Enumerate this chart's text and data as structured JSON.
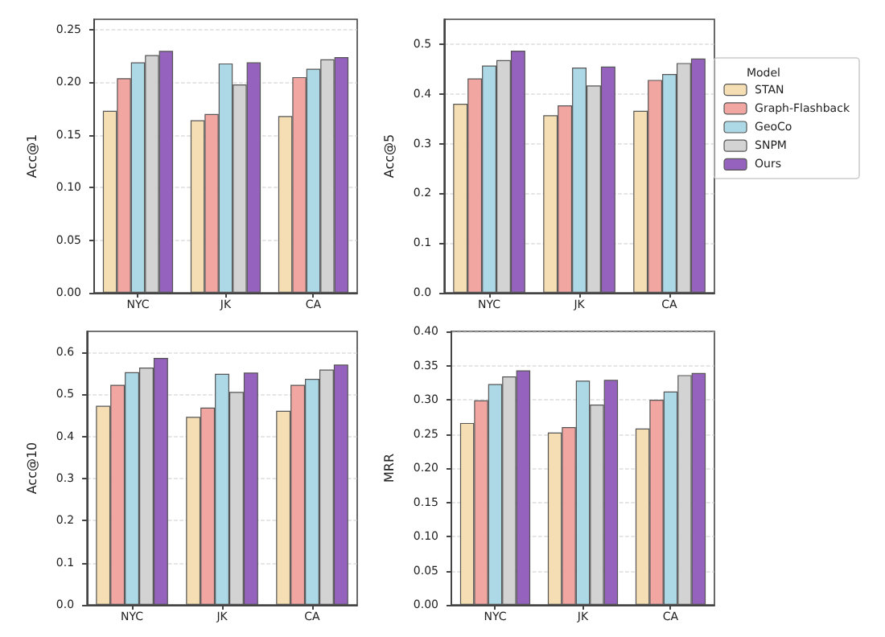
{
  "chart_data": [
    {
      "type": "bar",
      "categories": [
        "NYC",
        "JK",
        "CA"
      ],
      "ylabel": "Acc@1",
      "ylim": [
        0,
        0.26
      ],
      "yticks": [
        {
          "value": 0,
          "label": "0.00"
        },
        0.05,
        {
          "value": 0.1,
          "label": "0.10"
        },
        0.15,
        {
          "value": 0.2,
          "label": "0.20"
        },
        0.25
      ],
      "grid": "y",
      "legend": false,
      "series": [
        {
          "color": "#f5deb3",
          "values": [
            0.173,
            0.164,
            0.168
          ]
        },
        {
          "color": "#f2a6a2",
          "values": [
            0.204,
            0.17,
            0.205
          ]
        },
        {
          "color": "#add8e6",
          "values": [
            0.219,
            0.218,
            0.213
          ]
        },
        {
          "color": "#d3d3d3",
          "values": [
            0.226,
            0.198,
            0.222
          ]
        },
        {
          "color": "#9562bd",
          "values": [
            0.23,
            0.219,
            0.224
          ]
        }
      ]
    },
    {
      "type": "bar",
      "categories": [
        "NYC",
        "JK",
        "CA"
      ],
      "ylabel": "Acc@5",
      "ylim": [
        0,
        0.55
      ],
      "yticks": [
        {
          "value": 0,
          "label": "0.0"
        },
        0.1,
        0.2,
        0.3,
        0.4,
        0.5
      ],
      "grid": "y",
      "legend": "right",
      "legend_title": "Model",
      "series": [
        {
          "name": "STAN",
          "color": "#f5deb3",
          "values": [
            0.38,
            0.357,
            0.366
          ]
        },
        {
          "name": "Graph-Flashback",
          "color": "#f2a6a2",
          "values": [
            0.431,
            0.377,
            0.428
          ]
        },
        {
          "name": "GeoCo",
          "color": "#add8e6",
          "values": [
            0.457,
            0.453,
            0.44
          ]
        },
        {
          "name": "SNPM",
          "color": "#d3d3d3",
          "values": [
            0.468,
            0.417,
            0.462
          ]
        },
        {
          "name": "Ours",
          "color": "#9562bd",
          "values": [
            0.487,
            0.455,
            0.471
          ]
        }
      ]
    },
    {
      "type": "bar",
      "categories": [
        "NYC",
        "JK",
        "CA"
      ],
      "ylabel": "Acc@10",
      "ylim": [
        0,
        0.65
      ],
      "yticks": [
        {
          "value": 0,
          "label": "0.0"
        },
        0.1,
        0.2,
        0.3,
        0.4,
        0.5,
        0.6
      ],
      "grid": "y",
      "legend": false,
      "series": [
        {
          "color": "#f5deb3",
          "values": [
            0.473,
            0.447,
            0.461
          ]
        },
        {
          "color": "#f2a6a2",
          "values": [
            0.523,
            0.469,
            0.523
          ]
        },
        {
          "color": "#add8e6",
          "values": [
            0.553,
            0.549,
            0.537
          ]
        },
        {
          "color": "#d3d3d3",
          "values": [
            0.564,
            0.506,
            0.559
          ]
        },
        {
          "color": "#9562bd",
          "values": [
            0.587,
            0.552,
            0.571
          ]
        }
      ]
    },
    {
      "type": "bar",
      "categories": [
        "NYC",
        "JK",
        "CA"
      ],
      "ylabel": "MRR",
      "ylim": [
        0,
        0.4
      ],
      "yticks": [
        {
          "value": 0,
          "label": "0.00"
        },
        0.05,
        {
          "value": 0.1,
          "label": "0.10"
        },
        0.15,
        {
          "value": 0.2,
          "label": "0.20"
        },
        0.25,
        {
          "value": 0.3,
          "label": "0.30"
        },
        0.35,
        {
          "value": 0.4,
          "label": "0.40"
        }
      ],
      "grid": "y",
      "legend": false,
      "series": [
        {
          "color": "#f5deb3",
          "values": [
            0.266,
            0.252,
            0.258
          ]
        },
        {
          "color": "#f2a6a2",
          "values": [
            0.299,
            0.26,
            0.3
          ]
        },
        {
          "color": "#add8e6",
          "values": [
            0.323,
            0.328,
            0.312
          ]
        },
        {
          "color": "#d3d3d3",
          "values": [
            0.334,
            0.293,
            0.336
          ]
        },
        {
          "color": "#9562bd",
          "values": [
            0.343,
            0.329,
            0.339
          ]
        }
      ]
    }
  ]
}
